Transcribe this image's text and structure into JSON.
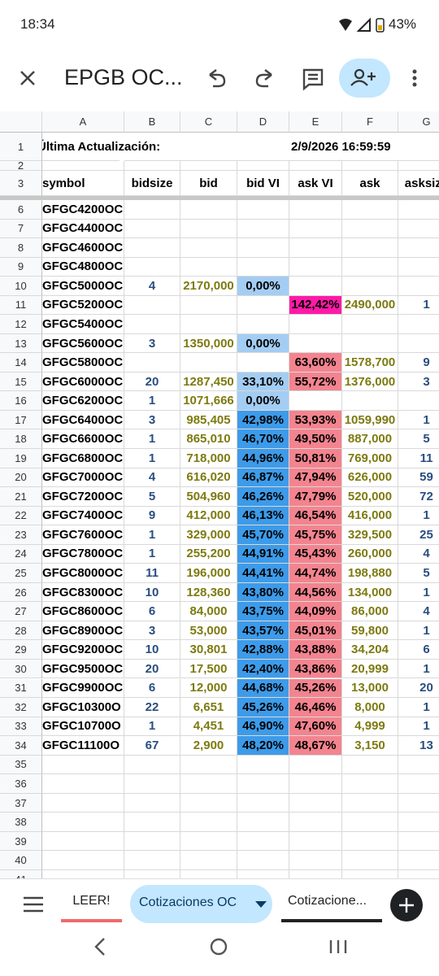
{
  "status": {
    "time": "18:34",
    "battery": "43%"
  },
  "toolbar": {
    "title": "EPGB OC..."
  },
  "sheet": {
    "columns": [
      "A",
      "B",
      "C",
      "D",
      "E",
      "F",
      "G"
    ],
    "rows": [
      {
        "num": 1,
        "cells": [
          "Última Actualización:",
          null,
          null,
          null,
          "2/9/2026 16:59:59",
          null,
          null
        ]
      },
      {
        "num": 2,
        "cells": [
          null,
          null,
          null,
          null,
          null,
          null,
          null
        ]
      },
      {
        "num": 3,
        "cells": [
          "symbol",
          "bidsize",
          "bid",
          "bid VI",
          "ask VI",
          "ask",
          "asksize"
        ]
      },
      {
        "num": 6,
        "cells": [
          "GFGC4200OC",
          null,
          null,
          null,
          null,
          null,
          null
        ]
      },
      {
        "num": 7,
        "cells": [
          "GFGC4400OC",
          null,
          null,
          null,
          null,
          null,
          null
        ]
      },
      {
        "num": 8,
        "cells": [
          "GFGC4600OC",
          null,
          null,
          null,
          null,
          null,
          null
        ]
      },
      {
        "num": 9,
        "cells": [
          "GFGC4800OC",
          null,
          null,
          null,
          null,
          null,
          null
        ]
      },
      {
        "num": 10,
        "cells": [
          "GFGC5000OC",
          "4",
          "2170,000",
          "0,00%",
          null,
          null,
          null
        ]
      },
      {
        "num": 11,
        "cells": [
          "GFGC5200OC",
          null,
          null,
          null,
          "142,42%",
          "2490,000",
          "1"
        ]
      },
      {
        "num": 12,
        "cells": [
          "GFGC5400OC",
          null,
          null,
          null,
          null,
          null,
          null
        ]
      },
      {
        "num": 13,
        "cells": [
          "GFGC5600OC",
          "3",
          "1350,000",
          "0,00%",
          null,
          null,
          null
        ]
      },
      {
        "num": 14,
        "cells": [
          "GFGC5800OC",
          null,
          null,
          null,
          "63,60%",
          "1578,700",
          "9"
        ]
      },
      {
        "num": 15,
        "cells": [
          "GFGC6000OC",
          "20",
          "1287,450",
          "33,10%",
          "55,72%",
          "1376,000",
          "3"
        ]
      },
      {
        "num": 16,
        "cells": [
          "GFGC6200OC",
          "1",
          "1071,666",
          "0,00%",
          null,
          null,
          null
        ]
      },
      {
        "num": 17,
        "cells": [
          "GFGC6400OC",
          "3",
          "985,405",
          "42,98%",
          "53,93%",
          "1059,990",
          "1"
        ]
      },
      {
        "num": 18,
        "cells": [
          "GFGC6600OC",
          "1",
          "865,010",
          "46,70%",
          "49,50%",
          "887,000",
          "5"
        ]
      },
      {
        "num": 19,
        "cells": [
          "GFGC6800OC",
          "1",
          "718,000",
          "44,96%",
          "50,81%",
          "769,000",
          "11"
        ]
      },
      {
        "num": 20,
        "cells": [
          "GFGC7000OC",
          "4",
          "616,020",
          "46,87%",
          "47,94%",
          "626,000",
          "59"
        ]
      },
      {
        "num": 21,
        "cells": [
          "GFGC7200OC",
          "5",
          "504,960",
          "46,26%",
          "47,79%",
          "520,000",
          "72"
        ]
      },
      {
        "num": 22,
        "cells": [
          "GFGC7400OC",
          "9",
          "412,000",
          "46,13%",
          "46,54%",
          "416,000",
          "1"
        ]
      },
      {
        "num": 23,
        "cells": [
          "GFGC7600OC",
          "1",
          "329,000",
          "45,70%",
          "45,75%",
          "329,500",
          "25"
        ]
      },
      {
        "num": 24,
        "cells": [
          "GFGC7800OC",
          "1",
          "255,200",
          "44,91%",
          "45,43%",
          "260,000",
          "4"
        ]
      },
      {
        "num": 25,
        "cells": [
          "GFGC8000OC",
          "11",
          "196,000",
          "44,41%",
          "44,74%",
          "198,880",
          "5"
        ]
      },
      {
        "num": 26,
        "cells": [
          "GFGC8300OC",
          "10",
          "128,360",
          "43,80%",
          "44,56%",
          "134,000",
          "1"
        ]
      },
      {
        "num": 27,
        "cells": [
          "GFGC8600OC",
          "6",
          "84,000",
          "43,75%",
          "44,09%",
          "86,000",
          "4"
        ]
      },
      {
        "num": 28,
        "cells": [
          "GFGC8900OC",
          "3",
          "53,000",
          "43,57%",
          "45,01%",
          "59,800",
          "1"
        ]
      },
      {
        "num": 29,
        "cells": [
          "GFGC9200OC",
          "10",
          "30,801",
          "42,88%",
          "43,88%",
          "34,204",
          "6"
        ]
      },
      {
        "num": 30,
        "cells": [
          "GFGC9500OC",
          "20",
          "17,500",
          "42,40%",
          "43,86%",
          "20,999",
          "1"
        ]
      },
      {
        "num": 31,
        "cells": [
          "GFGC9900OC",
          "6",
          "12,000",
          "44,68%",
          "45,26%",
          "13,000",
          "20"
        ]
      },
      {
        "num": 32,
        "cells": [
          "GFGC10300O",
          "22",
          "6,651",
          "45,26%",
          "46,46%",
          "8,000",
          "1"
        ]
      },
      {
        "num": 33,
        "cells": [
          "GFGC10700O",
          "1",
          "4,451",
          "46,90%",
          "47,60%",
          "4,999",
          "1"
        ]
      },
      {
        "num": 34,
        "cells": [
          "GFGC11100O",
          "67",
          "2,900",
          "48,20%",
          "48,67%",
          "3,150",
          "13"
        ]
      },
      {
        "num": 35,
        "cells": [
          null,
          null,
          null,
          null,
          null,
          null,
          null
        ]
      },
      {
        "num": 36,
        "cells": [
          null,
          null,
          null,
          null,
          null,
          null,
          null
        ]
      },
      {
        "num": 37,
        "cells": [
          null,
          null,
          null,
          null,
          null,
          null,
          null
        ]
      },
      {
        "num": 38,
        "cells": [
          null,
          null,
          null,
          null,
          null,
          null,
          null
        ]
      },
      {
        "num": 39,
        "cells": [
          null,
          null,
          null,
          null,
          null,
          null,
          null
        ]
      },
      {
        "num": 40,
        "cells": [
          null,
          null,
          null,
          null,
          null,
          null,
          null
        ]
      },
      {
        "num": 41,
        "cells": [
          null,
          null,
          null,
          null,
          null,
          null,
          null
        ]
      }
    ]
  },
  "tabs": [
    "LEER!",
    "Cotizaciones OC",
    "Cotizacione..."
  ]
}
